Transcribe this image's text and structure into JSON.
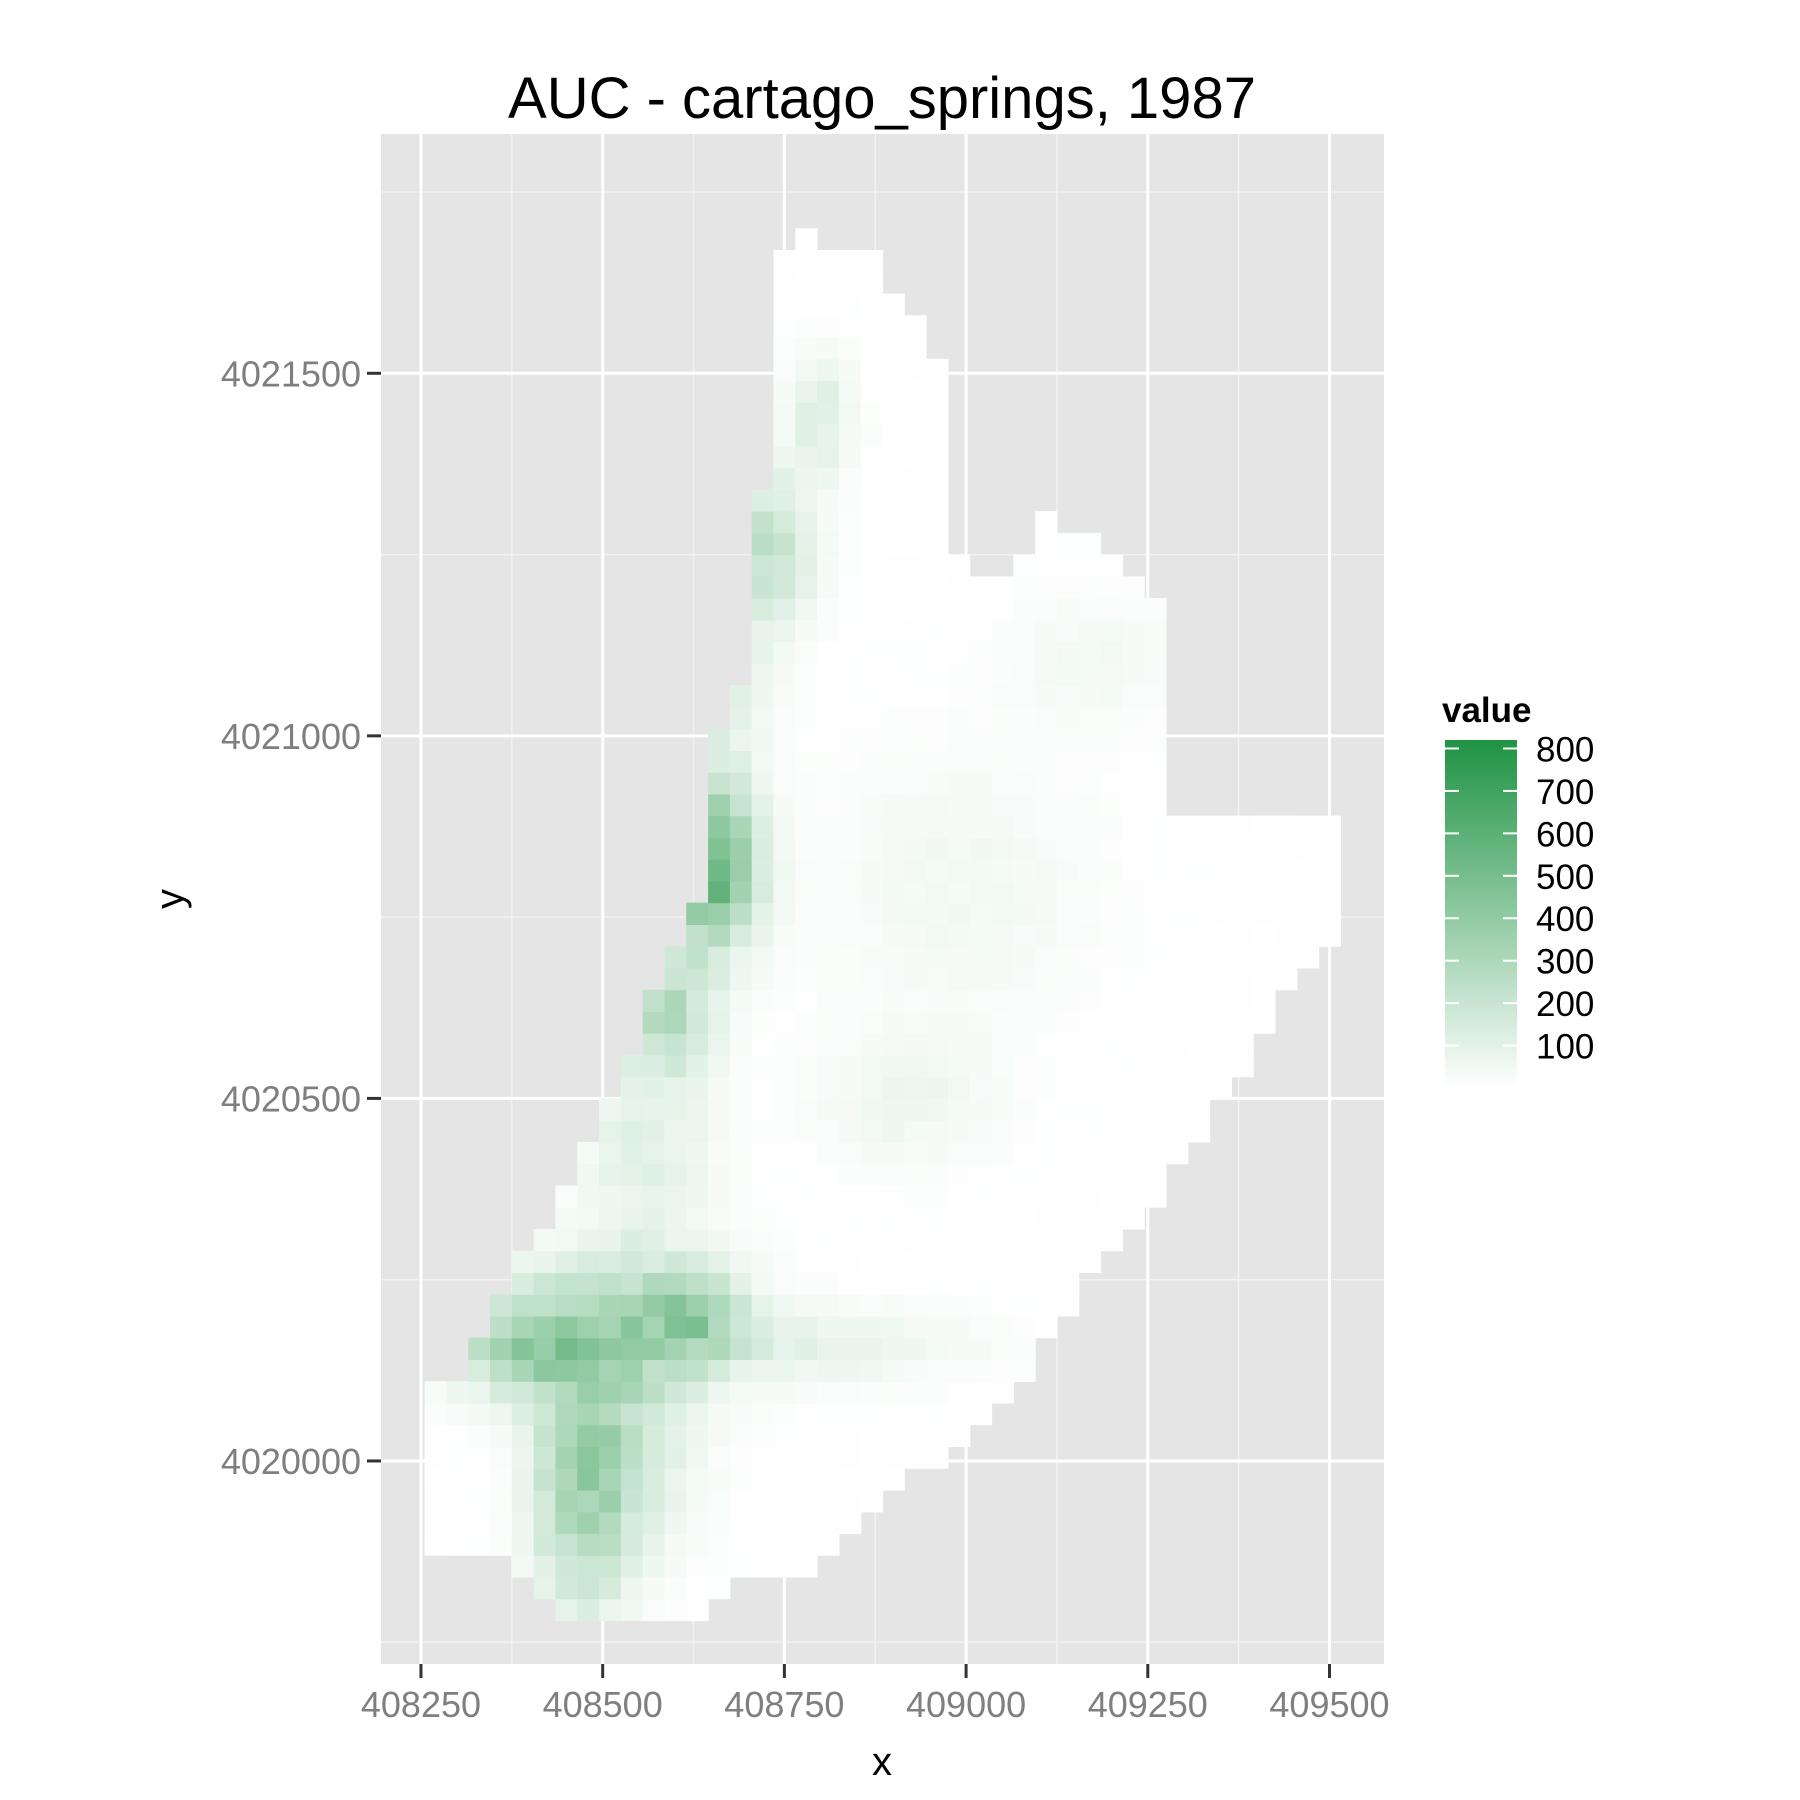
{
  "chart_data": {
    "type": "heatmap",
    "title": "AUC - cartago_springs, 1987",
    "xlabel": "x",
    "ylabel": "y",
    "xlim": [
      408195,
      409575
    ],
    "ylim": [
      4019720,
      4021830
    ],
    "x_ticks": [
      408250,
      408500,
      408750,
      409000,
      409250,
      409500
    ],
    "x_tick_labels": [
      "408250",
      "408500",
      "408750",
      "409000",
      "409250",
      "409500"
    ],
    "y_ticks": [
      4020000,
      4020500,
      4021000,
      4021500
    ],
    "y_tick_labels": [
      "4020000",
      "4020500",
      "4021000",
      "4021500"
    ],
    "cell_size": 30,
    "grid": true,
    "legend": {
      "title": "value",
      "position": "right",
      "min": 0,
      "max": 820,
      "breaks": [
        800,
        700,
        600,
        500,
        400,
        300,
        200,
        100
      ],
      "break_labels": [
        "800",
        "700",
        "600",
        "500",
        "400",
        "300",
        "200",
        "100"
      ],
      "low_color": "#ffffff",
      "high_color": "#1f9343"
    },
    "colors": {
      "panel": "#e5e5e5",
      "grid_major": "#ffffff",
      "grid_minor": "#f2f2f2"
    },
    "outline": [
      [
        408765,
        4021700
      ],
      [
        408740,
        4021670
      ],
      [
        408735,
        4021500
      ],
      [
        408710,
        4021250
      ],
      [
        408695,
        4021100
      ],
      [
        408685,
        4021010
      ],
      [
        408650,
        4020990
      ],
      [
        408640,
        4020810
      ],
      [
        408625,
        4020750
      ],
      [
        408590,
        4020700
      ],
      [
        408565,
        4020620
      ],
      [
        408535,
        4020550
      ],
      [
        408510,
        4020490
      ],
      [
        408480,
        4020450
      ],
      [
        408450,
        4020370
      ],
      [
        408400,
        4020300
      ],
      [
        408365,
        4020250
      ],
      [
        408335,
        4020190
      ],
      [
        408305,
        4020110
      ],
      [
        408250,
        4020130
      ],
      [
        408255,
        4019880
      ],
      [
        408330,
        4019880
      ],
      [
        408380,
        4019850
      ],
      [
        408440,
        4019780
      ],
      [
        408505,
        4019770
      ],
      [
        408630,
        4019770
      ],
      [
        408690,
        4019830
      ],
      [
        408780,
        4019850
      ],
      [
        408865,
        4019930
      ],
      [
        408925,
        4019980
      ],
      [
        409015,
        4020030
      ],
      [
        409090,
        4020120
      ],
      [
        409140,
        4020210
      ],
      [
        409195,
        4020290
      ],
      [
        409260,
        4020350
      ],
      [
        409310,
        4020430
      ],
      [
        409365,
        4020510
      ],
      [
        409410,
        4020590
      ],
      [
        409470,
        4020690
      ],
      [
        409510,
        4020720
      ],
      [
        409510,
        4020880
      ],
      [
        409450,
        4020880
      ],
      [
        409290,
        4020900
      ],
      [
        409290,
        4021180
      ],
      [
        409250,
        4021180
      ],
      [
        409190,
        4021270
      ],
      [
        409110,
        4021300
      ],
      [
        409080,
        4021250
      ],
      [
        409040,
        4021220
      ],
      [
        408985,
        4021240
      ],
      [
        408960,
        4021520
      ],
      [
        408910,
        4021600
      ],
      [
        408870,
        4021660
      ],
      [
        408830,
        4021670
      ]
    ],
    "hotspots": [
      {
        "x": 408650,
        "y": 4020810,
        "sx": 45,
        "sy": 70,
        "value": 470
      },
      {
        "x": 408600,
        "y": 4020880,
        "sx": 50,
        "sy": 60,
        "value": 330
      },
      {
        "x": 408730,
        "y": 4021260,
        "sx": 40,
        "sy": 70,
        "value": 210
      },
      {
        "x": 408800,
        "y": 4021440,
        "sx": 30,
        "sy": 55,
        "value": 120
      },
      {
        "x": 408590,
        "y": 4020620,
        "sx": 45,
        "sy": 60,
        "value": 260
      },
      {
        "x": 408400,
        "y": 4020160,
        "sx": 70,
        "sy": 50,
        "value": 320
      },
      {
        "x": 408540,
        "y": 4020190,
        "sx": 90,
        "sy": 70,
        "value": 260
      },
      {
        "x": 408630,
        "y": 4020200,
        "sx": 40,
        "sy": 40,
        "value": 250
      },
      {
        "x": 408470,
        "y": 4019960,
        "sx": 45,
        "sy": 120,
        "value": 300
      },
      {
        "x": 408540,
        "y": 4020010,
        "sx": 60,
        "sy": 90,
        "value": 150
      },
      {
        "x": 408780,
        "y": 4020160,
        "sx": 140,
        "sy": 35,
        "value": 90
      },
      {
        "x": 408920,
        "y": 4020500,
        "sx": 80,
        "sy": 60,
        "value": 60
      },
      {
        "x": 408990,
        "y": 4020790,
        "sx": 120,
        "sy": 120,
        "value": 45
      },
      {
        "x": 409170,
        "y": 4021100,
        "sx": 80,
        "sy": 60,
        "value": 40
      },
      {
        "x": 408560,
        "y": 4020430,
        "sx": 60,
        "sy": 80,
        "value": 110
      },
      {
        "x": 408660,
        "y": 4021100,
        "sx": 45,
        "sy": 110,
        "value": 120
      }
    ]
  }
}
